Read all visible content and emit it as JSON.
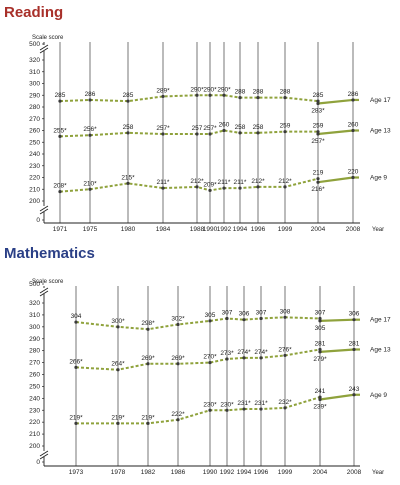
{
  "colors": {
    "reading_title": "#a8302a",
    "math_title": "#2a3f86",
    "line": "#8fa23c",
    "vline": "#555555"
  },
  "chart_data": [
    {
      "type": "line",
      "title": "Reading",
      "ylabel": "Scale score",
      "xlabel": "Year",
      "x": [
        "1971",
        "1975",
        "1980",
        "1984",
        "1988",
        "1990",
        "1992",
        "1994",
        "1996",
        "1999",
        "2004",
        "2008"
      ],
      "ylim": [
        0,
        500
      ],
      "yticks": [
        "0",
        "200",
        "210",
        "220",
        "230",
        "240",
        "250",
        "260",
        "270",
        "280",
        "290",
        "300",
        "310",
        "320",
        "500"
      ],
      "axis_break": true,
      "trend_ends_at": "2004",
      "series": [
        {
          "name": "Age 17",
          "values": [
            285,
            286,
            285,
            289,
            290,
            290,
            290,
            288,
            288,
            288,
            285,
            286
          ],
          "labels": [
            "285",
            "286",
            "285",
            "289*",
            "290*",
            "290*",
            "290*",
            "288",
            "288",
            "288",
            "285",
            "286"
          ],
          "extra": {
            "x": "2004",
            "value": 283,
            "label": "283*"
          }
        },
        {
          "name": "Age 13",
          "values": [
            255,
            256,
            258,
            257,
            257,
            257,
            260,
            258,
            258,
            259,
            259,
            260
          ],
          "labels": [
            "255*",
            "256*",
            "258",
            "257*",
            "257",
            "257*",
            "260",
            "258",
            "258",
            "259",
            "259",
            "260"
          ],
          "extra": {
            "x": "2004",
            "value": 257,
            "label": "257*"
          }
        },
        {
          "name": "Age 9",
          "values": [
            208,
            210,
            215,
            211,
            212,
            209,
            211,
            211,
            212,
            212,
            219,
            220
          ],
          "labels": [
            "208*",
            "210*",
            "215*",
            "211*",
            "212*",
            "209*",
            "211*",
            "211*",
            "212*",
            "212*",
            "219",
            "220"
          ],
          "extra": {
            "x": "2004",
            "value": 216,
            "label": "216*"
          }
        }
      ]
    },
    {
      "type": "line",
      "title": "Mathematics",
      "ylabel": "Scale score",
      "xlabel": "Year",
      "x": [
        "1973",
        "1978",
        "1982",
        "1986",
        "1990",
        "1992",
        "1994",
        "1996",
        "1999",
        "2004",
        "2008"
      ],
      "ylim": [
        0,
        500
      ],
      "yticks": [
        "0",
        "200",
        "210",
        "220",
        "230",
        "240",
        "250",
        "260",
        "270",
        "280",
        "290",
        "300",
        "310",
        "320",
        "500"
      ],
      "axis_break": true,
      "trend_ends_at": "2004",
      "series": [
        {
          "name": "Age 17",
          "values": [
            304,
            300,
            298,
            302,
            305,
            307,
            306,
            307,
            308,
            307,
            306
          ],
          "labels": [
            "304",
            "300*",
            "298*",
            "302*",
            "305",
            "307",
            "306",
            "307",
            "308",
            "307",
            "306"
          ],
          "extra": {
            "x": "2004",
            "value": 305,
            "label": "305"
          }
        },
        {
          "name": "Age 13",
          "values": [
            266,
            264,
            269,
            269,
            270,
            273,
            274,
            274,
            276,
            281,
            281
          ],
          "labels": [
            "266*",
            "264*",
            "269*",
            "269*",
            "270*",
            "273*",
            "274*",
            "274*",
            "276*",
            "281",
            "281"
          ],
          "extra": {
            "x": "2004",
            "value": 279,
            "label": "279*"
          }
        },
        {
          "name": "Age 9",
          "values": [
            219,
            219,
            219,
            222,
            230,
            230,
            231,
            231,
            232,
            241,
            243
          ],
          "labels": [
            "219*",
            "219*",
            "219*",
            "222*",
            "230*",
            "230*",
            "231*",
            "231*",
            "232*",
            "241",
            "243"
          ],
          "extra": {
            "x": "2004",
            "value": 239,
            "label": "239*"
          }
        }
      ]
    }
  ]
}
